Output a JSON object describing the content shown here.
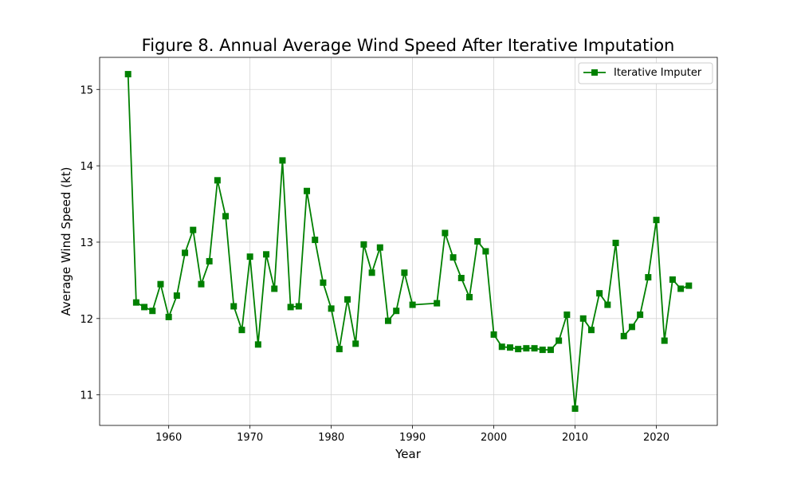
{
  "chart_data": {
    "type": "line",
    "title": "Figure 8. Annual Average Wind Speed After Iterative Imputation",
    "xlabel": "Year",
    "ylabel": "Average Wind Speed (kt)",
    "xlim": [
      1951.5,
      2027.5
    ],
    "ylim": [
      10.6,
      15.42
    ],
    "xticks": [
      1960,
      1970,
      1980,
      1990,
      2000,
      2010,
      2020
    ],
    "yticks": [
      11,
      12,
      13,
      14,
      15
    ],
    "grid": true,
    "legend_position": "top-right",
    "series": [
      {
        "name": "Iterative Imputer",
        "color": "#008000",
        "marker": "square",
        "x": [
          1955,
          1956,
          1957,
          1958,
          1959,
          1960,
          1961,
          1962,
          1963,
          1964,
          1965,
          1966,
          1967,
          1968,
          1969,
          1970,
          1971,
          1972,
          1973,
          1974,
          1975,
          1976,
          1977,
          1978,
          1979,
          1980,
          1981,
          1982,
          1983,
          1984,
          1985,
          1986,
          1987,
          1988,
          1989,
          1990,
          1993,
          1994,
          1995,
          1996,
          1997,
          1998,
          1999,
          2000,
          2001,
          2002,
          2003,
          2004,
          2005,
          2006,
          2007,
          2008,
          2009,
          2010,
          2011,
          2012,
          2013,
          2014,
          2015,
          2016,
          2017,
          2018,
          2019,
          2020,
          2021,
          2022,
          2023,
          2024
        ],
        "y": [
          15.2,
          12.21,
          12.15,
          12.1,
          12.45,
          12.02,
          12.3,
          12.86,
          13.16,
          12.45,
          12.75,
          13.81,
          13.34,
          12.16,
          11.85,
          12.81,
          11.66,
          12.84,
          12.39,
          14.07,
          12.15,
          12.16,
          13.67,
          13.03,
          12.47,
          12.13,
          11.6,
          12.25,
          11.67,
          12.97,
          12.6,
          12.93,
          11.97,
          12.1,
          12.6,
          12.18,
          12.2,
          13.12,
          12.8,
          12.53,
          12.28,
          13.01,
          12.88,
          11.79,
          11.63,
          11.62,
          11.6,
          11.61,
          11.61,
          11.59,
          11.59,
          11.71,
          12.05,
          10.82,
          12.0,
          11.85,
          12.33,
          12.18,
          12.99,
          11.77,
          11.89,
          12.05,
          12.54,
          13.29,
          11.71,
          12.51,
          12.39,
          12.43
        ]
      }
    ]
  }
}
